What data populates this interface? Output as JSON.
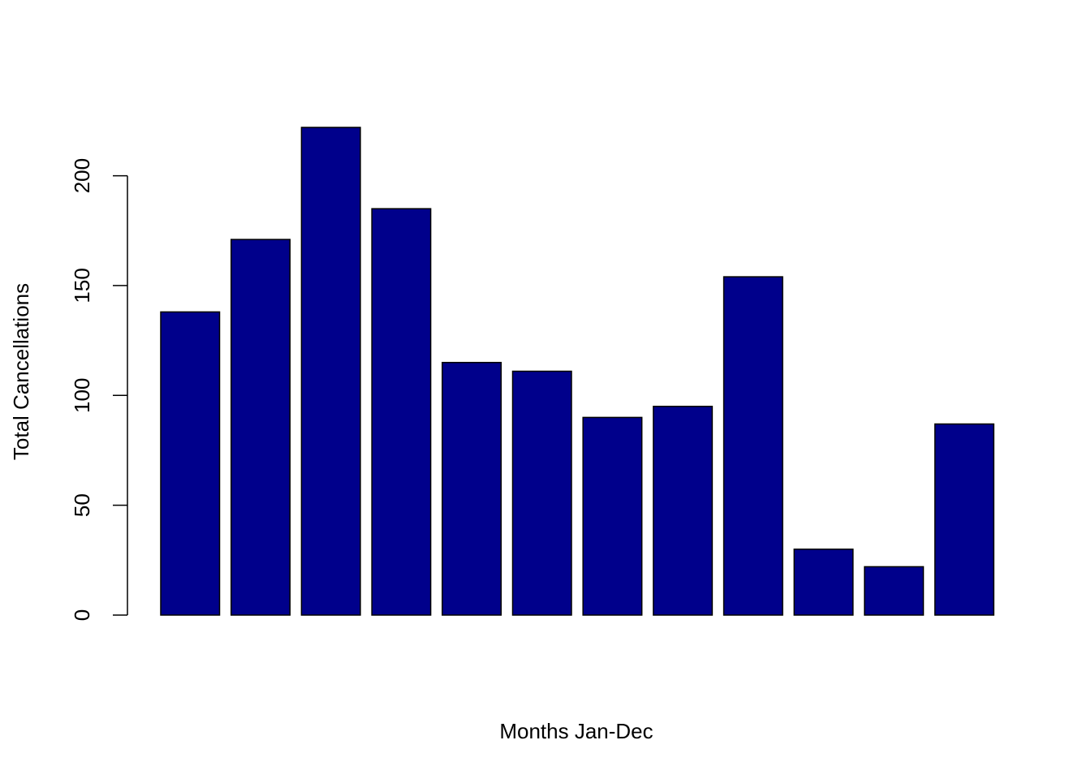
{
  "chart_data": {
    "type": "bar",
    "title": "",
    "xlabel": "Months Jan-Dec",
    "ylabel": "Total Cancellations",
    "values": [
      138,
      171,
      222,
      185,
      115,
      111,
      90,
      95,
      154,
      30,
      22,
      87
    ],
    "ylim": [
      0,
      222
    ],
    "yticks": [
      0,
      50,
      100,
      150,
      200
    ],
    "bar_color": "#00008B",
    "bar_border_color": "#000000",
    "grid": false,
    "legend": "none"
  }
}
